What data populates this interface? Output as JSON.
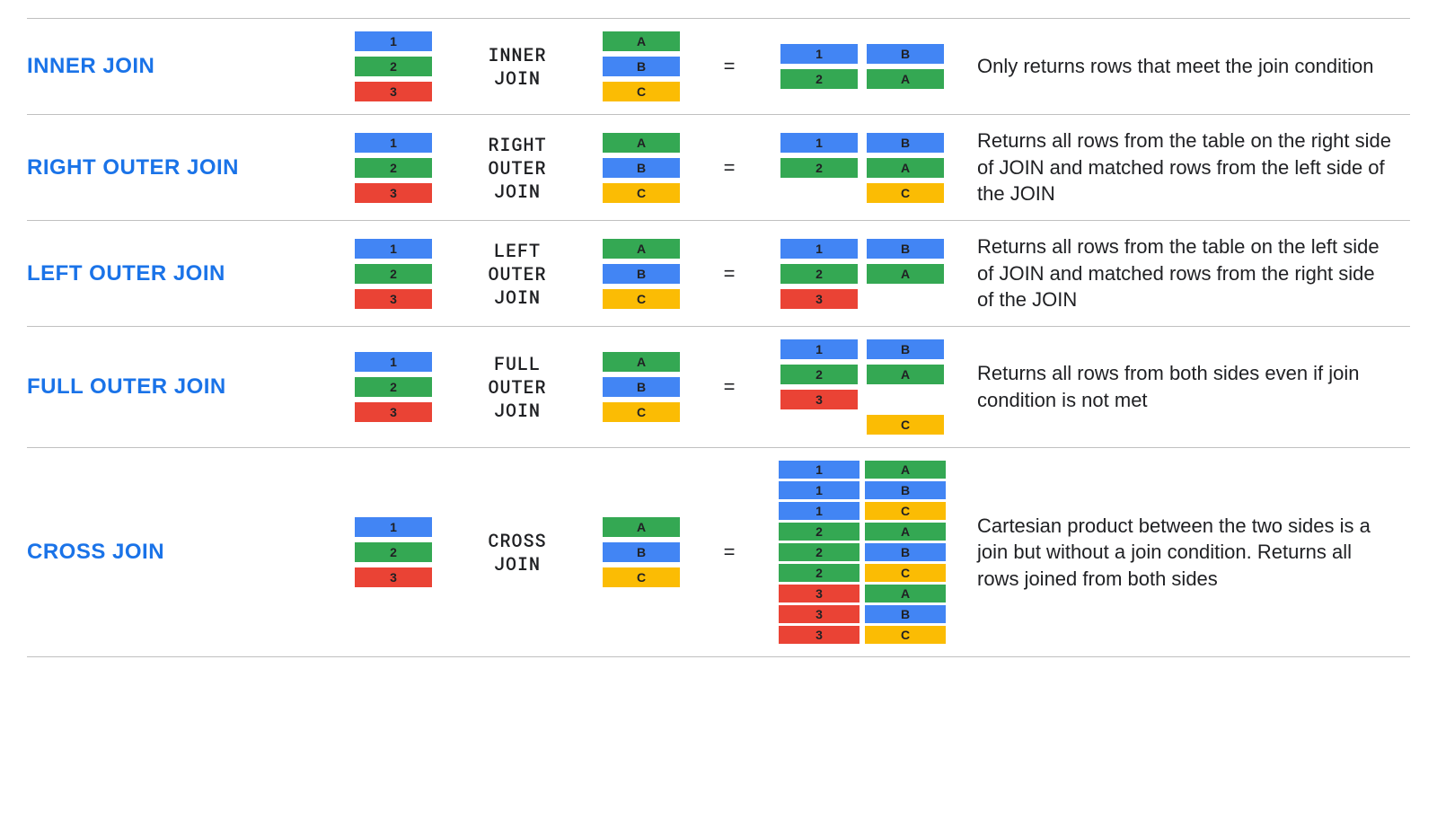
{
  "colors": {
    "blue": "#4285f4",
    "green": "#34a853",
    "red": "#ea4335",
    "yellow": "#fbbc04",
    "title": "#1a73e8",
    "rule": "#c0c0c0",
    "text": "#202124"
  },
  "left_table": [
    {
      "label": "1",
      "color": "blue"
    },
    {
      "label": "2",
      "color": "green"
    },
    {
      "label": "3",
      "color": "red"
    }
  ],
  "right_table": [
    {
      "label": "A",
      "color": "green"
    },
    {
      "label": "B",
      "color": "blue"
    },
    {
      "label": "C",
      "color": "yellow"
    }
  ],
  "equals": "=",
  "joins": [
    {
      "title": "INNER JOIN",
      "op": "INNER\nJOIN",
      "desc": "Only returns rows that meet the join condition",
      "result": [
        [
          {
            "label": "1",
            "color": "blue"
          },
          {
            "label": "B",
            "color": "blue"
          }
        ],
        [
          {
            "label": "2",
            "color": "green"
          },
          {
            "label": "A",
            "color": "green"
          }
        ]
      ]
    },
    {
      "title": "RIGHT OUTER JOIN",
      "op": "RIGHT\nOUTER\nJOIN",
      "desc": "Returns all rows from the table on the right side of JOIN and matched rows from the left side of the JOIN",
      "result": [
        [
          {
            "label": "1",
            "color": "blue"
          },
          {
            "label": "B",
            "color": "blue"
          }
        ],
        [
          {
            "label": "2",
            "color": "green"
          },
          {
            "label": "A",
            "color": "green"
          }
        ],
        [
          null,
          {
            "label": "C",
            "color": "yellow"
          }
        ]
      ]
    },
    {
      "title": "LEFT OUTER JOIN",
      "op": "LEFT\nOUTER\nJOIN",
      "desc": "Returns all rows from the table on the left side of JOIN and matched rows from the right side of the JOIN",
      "result": [
        [
          {
            "label": "1",
            "color": "blue"
          },
          {
            "label": "B",
            "color": "blue"
          }
        ],
        [
          {
            "label": "2",
            "color": "green"
          },
          {
            "label": "A",
            "color": "green"
          }
        ],
        [
          {
            "label": "3",
            "color": "red"
          },
          null
        ]
      ]
    },
    {
      "title": "FULL OUTER JOIN",
      "op": "FULL\nOUTER\nJOIN",
      "desc": "Returns all rows from both sides even if join condition is not met",
      "result": [
        [
          {
            "label": "1",
            "color": "blue"
          },
          {
            "label": "B",
            "color": "blue"
          }
        ],
        [
          {
            "label": "2",
            "color": "green"
          },
          {
            "label": "A",
            "color": "green"
          }
        ],
        [
          {
            "label": "3",
            "color": "red"
          },
          null
        ],
        [
          null,
          {
            "label": "C",
            "color": "yellow"
          }
        ]
      ]
    },
    {
      "title": "CROSS JOIN",
      "op": "CROSS\nJOIN",
      "desc": "Cartesian product between the two sides is a join but without a join condition. Returns all rows joined from both sides",
      "result": [
        [
          {
            "label": "1",
            "color": "blue"
          },
          {
            "label": "A",
            "color": "green"
          }
        ],
        [
          {
            "label": "1",
            "color": "blue"
          },
          {
            "label": "B",
            "color": "blue"
          }
        ],
        [
          {
            "label": "1",
            "color": "blue"
          },
          {
            "label": "C",
            "color": "yellow"
          }
        ],
        [
          {
            "label": "2",
            "color": "green"
          },
          {
            "label": "A",
            "color": "green"
          }
        ],
        [
          {
            "label": "2",
            "color": "green"
          },
          {
            "label": "B",
            "color": "blue"
          }
        ],
        [
          {
            "label": "2",
            "color": "green"
          },
          {
            "label": "C",
            "color": "yellow"
          }
        ],
        [
          {
            "label": "3",
            "color": "red"
          },
          {
            "label": "A",
            "color": "green"
          }
        ],
        [
          {
            "label": "3",
            "color": "red"
          },
          {
            "label": "B",
            "color": "blue"
          }
        ],
        [
          {
            "label": "3",
            "color": "red"
          },
          {
            "label": "C",
            "color": "yellow"
          }
        ]
      ]
    }
  ]
}
